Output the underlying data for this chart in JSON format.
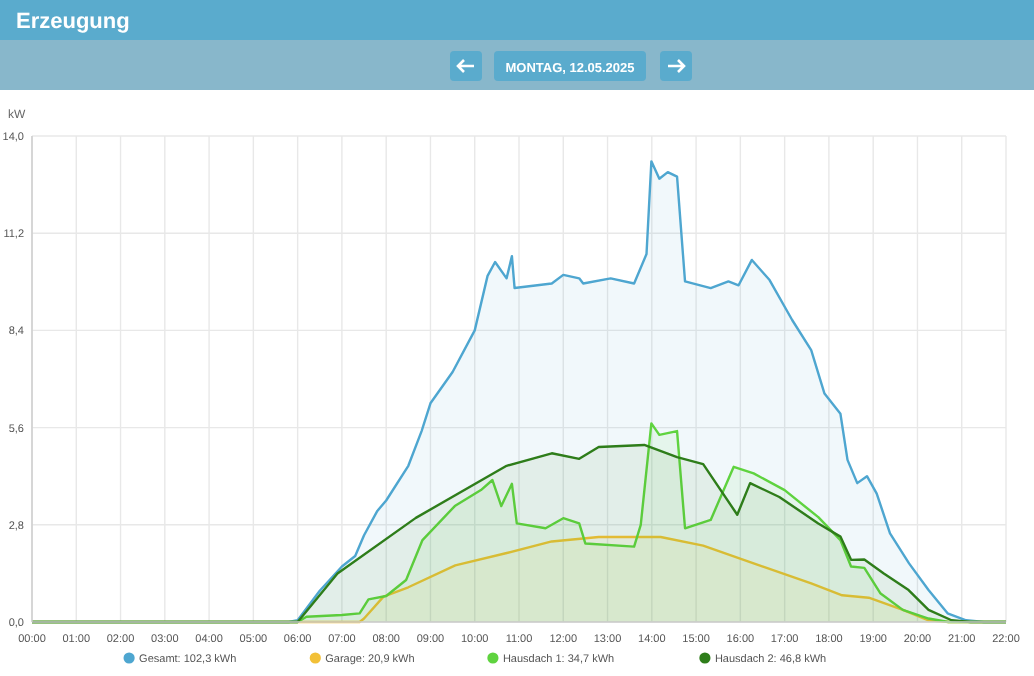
{
  "chart_data": {
    "type": "area",
    "title": "Erzeugung",
    "subtitle": "MONTAG, 12.05.2025",
    "ylabel": "kW",
    "xlim": [
      0,
      22
    ],
    "xticks": [
      {
        "value": 0,
        "label": "00:00"
      },
      {
        "value": 1,
        "label": "01:00"
      },
      {
        "value": 2,
        "label": "02:00"
      },
      {
        "value": 3,
        "label": "03:00"
      },
      {
        "value": 4,
        "label": "04:00"
      },
      {
        "value": 5,
        "label": "05:00"
      },
      {
        "value": 6,
        "label": "06:00"
      },
      {
        "value": 7,
        "label": "07:00"
      },
      {
        "value": 8,
        "label": "08:00"
      },
      {
        "value": 9,
        "label": "09:00"
      },
      {
        "value": 10,
        "label": "10:00"
      },
      {
        "value": 11,
        "label": "11:00"
      },
      {
        "value": 12,
        "label": "12:00"
      },
      {
        "value": 13,
        "label": "13:00"
      },
      {
        "value": 14,
        "label": "14:00"
      },
      {
        "value": 15,
        "label": "15:00"
      },
      {
        "value": 16,
        "label": "16:00"
      },
      {
        "value": 17,
        "label": "17:00"
      },
      {
        "value": 18,
        "label": "18:00"
      },
      {
        "value": 19,
        "label": "19:00"
      },
      {
        "value": 20,
        "label": "20:00"
      },
      {
        "value": 21,
        "label": "21:00"
      },
      {
        "value": 22,
        "label": "22:00"
      }
    ],
    "ylim": [
      0,
      14
    ],
    "yticks": [
      {
        "value": 0,
        "label": "0,0"
      },
      {
        "value": 2.8,
        "label": "2,8"
      },
      {
        "value": 5.6,
        "label": "5,6"
      },
      {
        "value": 8.4,
        "label": "8,4"
      },
      {
        "value": 11.2,
        "label": "11,2"
      },
      {
        "value": 14,
        "label": "14,0"
      }
    ],
    "grid": true,
    "legend": "bottom",
    "series": [
      {
        "name": "Gesamt: 102,3 kWh",
        "color": "#4ea6d0",
        "x": [
          0,
          5.8,
          6,
          6.5,
          7,
          7.3,
          7.5,
          7.8,
          8,
          8.5,
          8.8,
          9,
          9.5,
          10,
          10.29,
          10.46,
          10.72,
          10.84,
          10.9,
          11.74,
          12,
          12.36,
          12.45,
          13.07,
          13.6,
          13.88,
          13.99,
          14.17,
          14.36,
          14.57,
          14.75,
          15.33,
          15.73,
          15.96,
          16.26,
          16.66,
          17.17,
          17.6,
          17.9,
          18.26,
          18.42,
          18.64,
          18.86,
          19.08,
          19.38,
          19.81,
          20.25,
          20.68,
          21.1,
          21.5,
          22
        ],
        "values": [
          0,
          0,
          0.05,
          0.9,
          1.6,
          1.9,
          2.5,
          3.2,
          3.5,
          4.5,
          5.5,
          6.3,
          7.2,
          8.4,
          9.97,
          10.37,
          9.9,
          10.54,
          9.62,
          9.75,
          10,
          9.9,
          9.75,
          9.9,
          9.75,
          10.6,
          13.27,
          12.77,
          12.96,
          12.83,
          9.81,
          9.62,
          9.81,
          9.7,
          10.43,
          9.85,
          8.7,
          7.83,
          6.58,
          6,
          4.67,
          4,
          4.2,
          3.7,
          2.55,
          1.69,
          0.92,
          0.25,
          0.05,
          0,
          0
        ]
      },
      {
        "name": "Garage: 20,9 kWh",
        "color": "#f2c037",
        "x": [
          0,
          7.4,
          7.5,
          7.94,
          8.5,
          9.56,
          10.7,
          11.74,
          12.8,
          14.2,
          15.16,
          16.3,
          17.6,
          18.3,
          18.9,
          19.67,
          20.25,
          20.7,
          22
        ],
        "values": [
          0,
          0,
          0.1,
          0.73,
          1.0,
          1.63,
          1.98,
          2.32,
          2.45,
          2.45,
          2.2,
          1.69,
          1.11,
          0.77,
          0.7,
          0.35,
          0.05,
          0,
          0
        ]
      },
      {
        "name": "Hausdach 1: 34,7 kWh",
        "color": "#5fd33f",
        "x": [
          0,
          6,
          6.2,
          7,
          7.4,
          7.6,
          8,
          8.45,
          8.82,
          9.55,
          10.14,
          10.4,
          10.6,
          10.84,
          10.95,
          11.6,
          12,
          12.36,
          12.5,
          13.6,
          13.75,
          13.99,
          14.17,
          14.57,
          14.75,
          15.33,
          15.85,
          16.3,
          17,
          17.76,
          18.26,
          18.5,
          18.8,
          19.16,
          19.67,
          20.25,
          20.7,
          22
        ],
        "values": [
          0,
          0,
          0.15,
          0.2,
          0.25,
          0.65,
          0.75,
          1.21,
          2.36,
          3.34,
          3.8,
          4.09,
          3.34,
          3.98,
          2.84,
          2.7,
          2.99,
          2.84,
          2.26,
          2.17,
          2.8,
          5.72,
          5.39,
          5.5,
          2.7,
          2.94,
          4.47,
          4.28,
          3.8,
          3.02,
          2.36,
          1.6,
          1.56,
          0.83,
          0.35,
          0.1,
          0,
          0
        ]
      },
      {
        "name": "Hausdach 2: 46,8 kWh",
        "color": "#2e7d1a",
        "x": [
          0,
          6,
          6.9,
          8.67,
          10.72,
          11.74,
          12.36,
          12.8,
          13.83,
          14.57,
          15.16,
          15.93,
          16.22,
          16.88,
          17.76,
          18.26,
          18.5,
          18.8,
          19.24,
          19.8,
          20.25,
          20.77,
          21.2,
          22
        ],
        "values": [
          0,
          0,
          1.4,
          3,
          4.5,
          4.86,
          4.7,
          5.04,
          5.1,
          4.75,
          4.55,
          3.09,
          4,
          3.6,
          2.84,
          2.46,
          1.79,
          1.8,
          1.4,
          0.92,
          0.35,
          0.05,
          0,
          0
        ]
      }
    ]
  }
}
